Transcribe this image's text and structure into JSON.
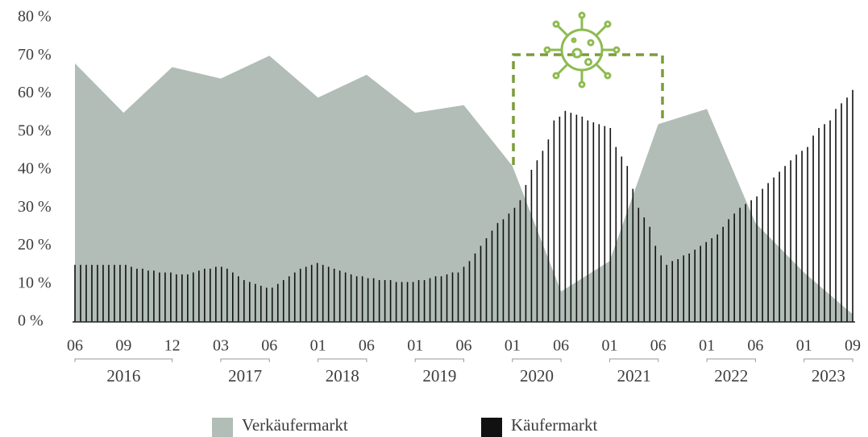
{
  "chart_data": {
    "type": "area",
    "years": [
      {
        "label": "2016",
        "ticks": [
          "06",
          "09",
          "12"
        ]
      },
      {
        "label": "2017",
        "ticks": [
          "03",
          "06"
        ]
      },
      {
        "label": "2018",
        "ticks": [
          "01",
          "06"
        ]
      },
      {
        "label": "2019",
        "ticks": [
          "01",
          "06"
        ]
      },
      {
        "label": "2020",
        "ticks": [
          "01",
          "06"
        ]
      },
      {
        "label": "2021",
        "ticks": [
          "01",
          "06"
        ]
      },
      {
        "label": "2022",
        "ticks": [
          "01",
          "06"
        ]
      },
      {
        "label": "2023",
        "ticks": [
          "01",
          "09"
        ]
      }
    ],
    "series": [
      {
        "name": "Verkäufermarkt",
        "type": "area",
        "color": "#b1bdb6",
        "values": [
          68,
          55,
          67,
          64,
          70,
          59,
          65,
          55,
          57,
          41,
          8,
          16,
          52,
          56,
          26,
          13,
          2
        ]
      },
      {
        "name": "Käufermarkt",
        "type": "bar",
        "color": "#111111",
        "values": [
          15,
          15,
          15,
          15,
          15,
          15,
          15,
          15,
          15,
          15,
          14.5,
          14,
          14,
          13.5,
          13.5,
          13,
          13,
          13,
          12.5,
          12.5,
          12.5,
          13,
          13.5,
          14,
          14,
          14.5,
          14.5,
          14,
          13,
          12,
          11,
          10.5,
          10,
          9.5,
          9,
          9,
          10,
          11,
          12,
          13,
          14,
          14.5,
          15,
          15.5,
          15,
          14.5,
          14,
          13.5,
          13,
          12.5,
          12,
          12,
          11.5,
          11.5,
          11,
          11,
          11,
          10.5,
          10.5,
          10.5,
          10.5,
          11,
          11,
          11.5,
          12,
          12,
          12.5,
          13,
          13,
          14.5,
          16,
          18,
          20,
          22,
          24,
          26,
          27,
          28.5,
          30,
          32,
          36,
          40,
          42.5,
          45,
          48,
          53,
          54,
          55.5,
          55,
          54.5,
          54,
          53,
          52.5,
          52,
          51.5,
          51,
          46,
          43.5,
          41,
          35,
          30,
          27.5,
          25,
          20,
          17.5,
          15,
          16,
          16.5,
          17.5,
          18,
          19,
          20,
          21,
          22,
          23,
          25,
          27,
          28.5,
          30,
          31,
          32,
          33,
          35,
          36.5,
          38,
          39.5,
          41,
          42.5,
          44,
          45,
          46,
          49,
          51,
          52,
          53,
          56,
          57.5,
          59,
          61
        ]
      }
    ],
    "ylim": [
      0,
      80
    ],
    "yticks": [
      {
        "value": 0,
        "label": "0 %"
      },
      {
        "value": 10,
        "label": "10 %"
      },
      {
        "value": 20,
        "label": "20 %"
      },
      {
        "value": 30,
        "label": "30 %"
      },
      {
        "value": 40,
        "label": "40 %"
      },
      {
        "value": 50,
        "label": "50 %"
      },
      {
        "value": 60,
        "label": "60 %"
      },
      {
        "value": 70,
        "label": "70 %"
      },
      {
        "value": 80,
        "label": "80 %"
      }
    ],
    "grid": false
  }
}
